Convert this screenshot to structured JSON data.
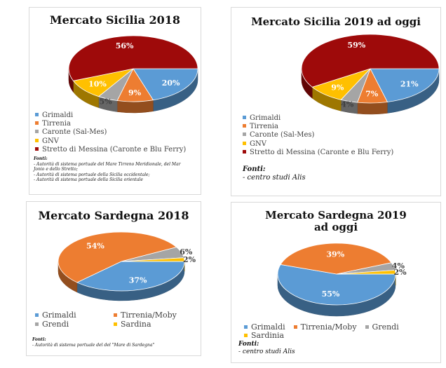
{
  "chart_data": [
    {
      "type": "pie",
      "title": "Mercato Sicilia 2018",
      "categories": [
        "Grimaldi",
        "Tirrenia",
        "Caronte (Sal-Mes)",
        "GNV",
        "Stretto di Messina (Caronte e Blu Ferry)"
      ],
      "values": [
        20,
        9,
        5,
        10,
        56
      ],
      "labels": [
        "20%",
        "9%",
        "5%",
        "10%",
        "56%"
      ],
      "colors": [
        "#5b9bd5",
        "#ed7d31",
        "#a5a5a5",
        "#ffc000",
        "#9e0a0a"
      ],
      "legend_position": "bottom",
      "sources_title": "Fonti:",
      "sources": [
        "- Autorità di sistema portuale del Mare Tirreno Meridionale, del Mar",
        "Jonio e dello Stretto;",
        "- Autorità di sistema portuale della Sicilia occidentale;",
        "- Autorità di sistema portuale della Sicilia orientale"
      ]
    },
    {
      "type": "pie",
      "title": "Mercato Sicilia 2019 ad oggi",
      "categories": [
        "Grimaldi",
        "Tirrenia",
        "Caronte (Sal-Mes)",
        "GNV",
        "Stretto di Messina (Caronte e Blu Ferry)"
      ],
      "values": [
        21,
        7,
        4,
        9,
        59
      ],
      "labels": [
        "21%",
        "7%",
        "4%",
        "9%",
        "59%"
      ],
      "colors": [
        "#5b9bd5",
        "#ed7d31",
        "#a5a5a5",
        "#ffc000",
        "#9e0a0a"
      ],
      "legend_position": "bottom",
      "sources_title": "Fonti:",
      "sources": [
        "- centro studi Alis"
      ]
    },
    {
      "type": "pie",
      "title": "Mercato Sardegna 2018",
      "categories": [
        "Grimaldi",
        "Tirrenia/Moby",
        "Grendi",
        "Sardina"
      ],
      "values": [
        37,
        54,
        6,
        2
      ],
      "labels": [
        "37%",
        "54%",
        "6%",
        "2%"
      ],
      "colors": [
        "#5b9bd5",
        "#ed7d31",
        "#a5a5a5",
        "#ffc000"
      ],
      "legend_position": "bottom",
      "sources_title": "Fonti:",
      "sources": [
        "- Autorità di sistema portuale del del \"Mare di Sardegna\""
      ]
    },
    {
      "type": "pie",
      "title": "Mercato Sardegna 2019 ad oggi",
      "categories": [
        "Grimaldi",
        "Tirrenia/Moby",
        "Grendi",
        "Sardinia"
      ],
      "values": [
        55,
        39,
        4,
        2
      ],
      "labels": [
        "55%",
        "39%",
        "4%",
        "2%"
      ],
      "colors": [
        "#5b9bd5",
        "#ed7d31",
        "#a5a5a5",
        "#ffc000"
      ],
      "legend_position": "bottom",
      "sources_title": "Fonti:",
      "sources": [
        "- centro studi Alis"
      ]
    }
  ]
}
